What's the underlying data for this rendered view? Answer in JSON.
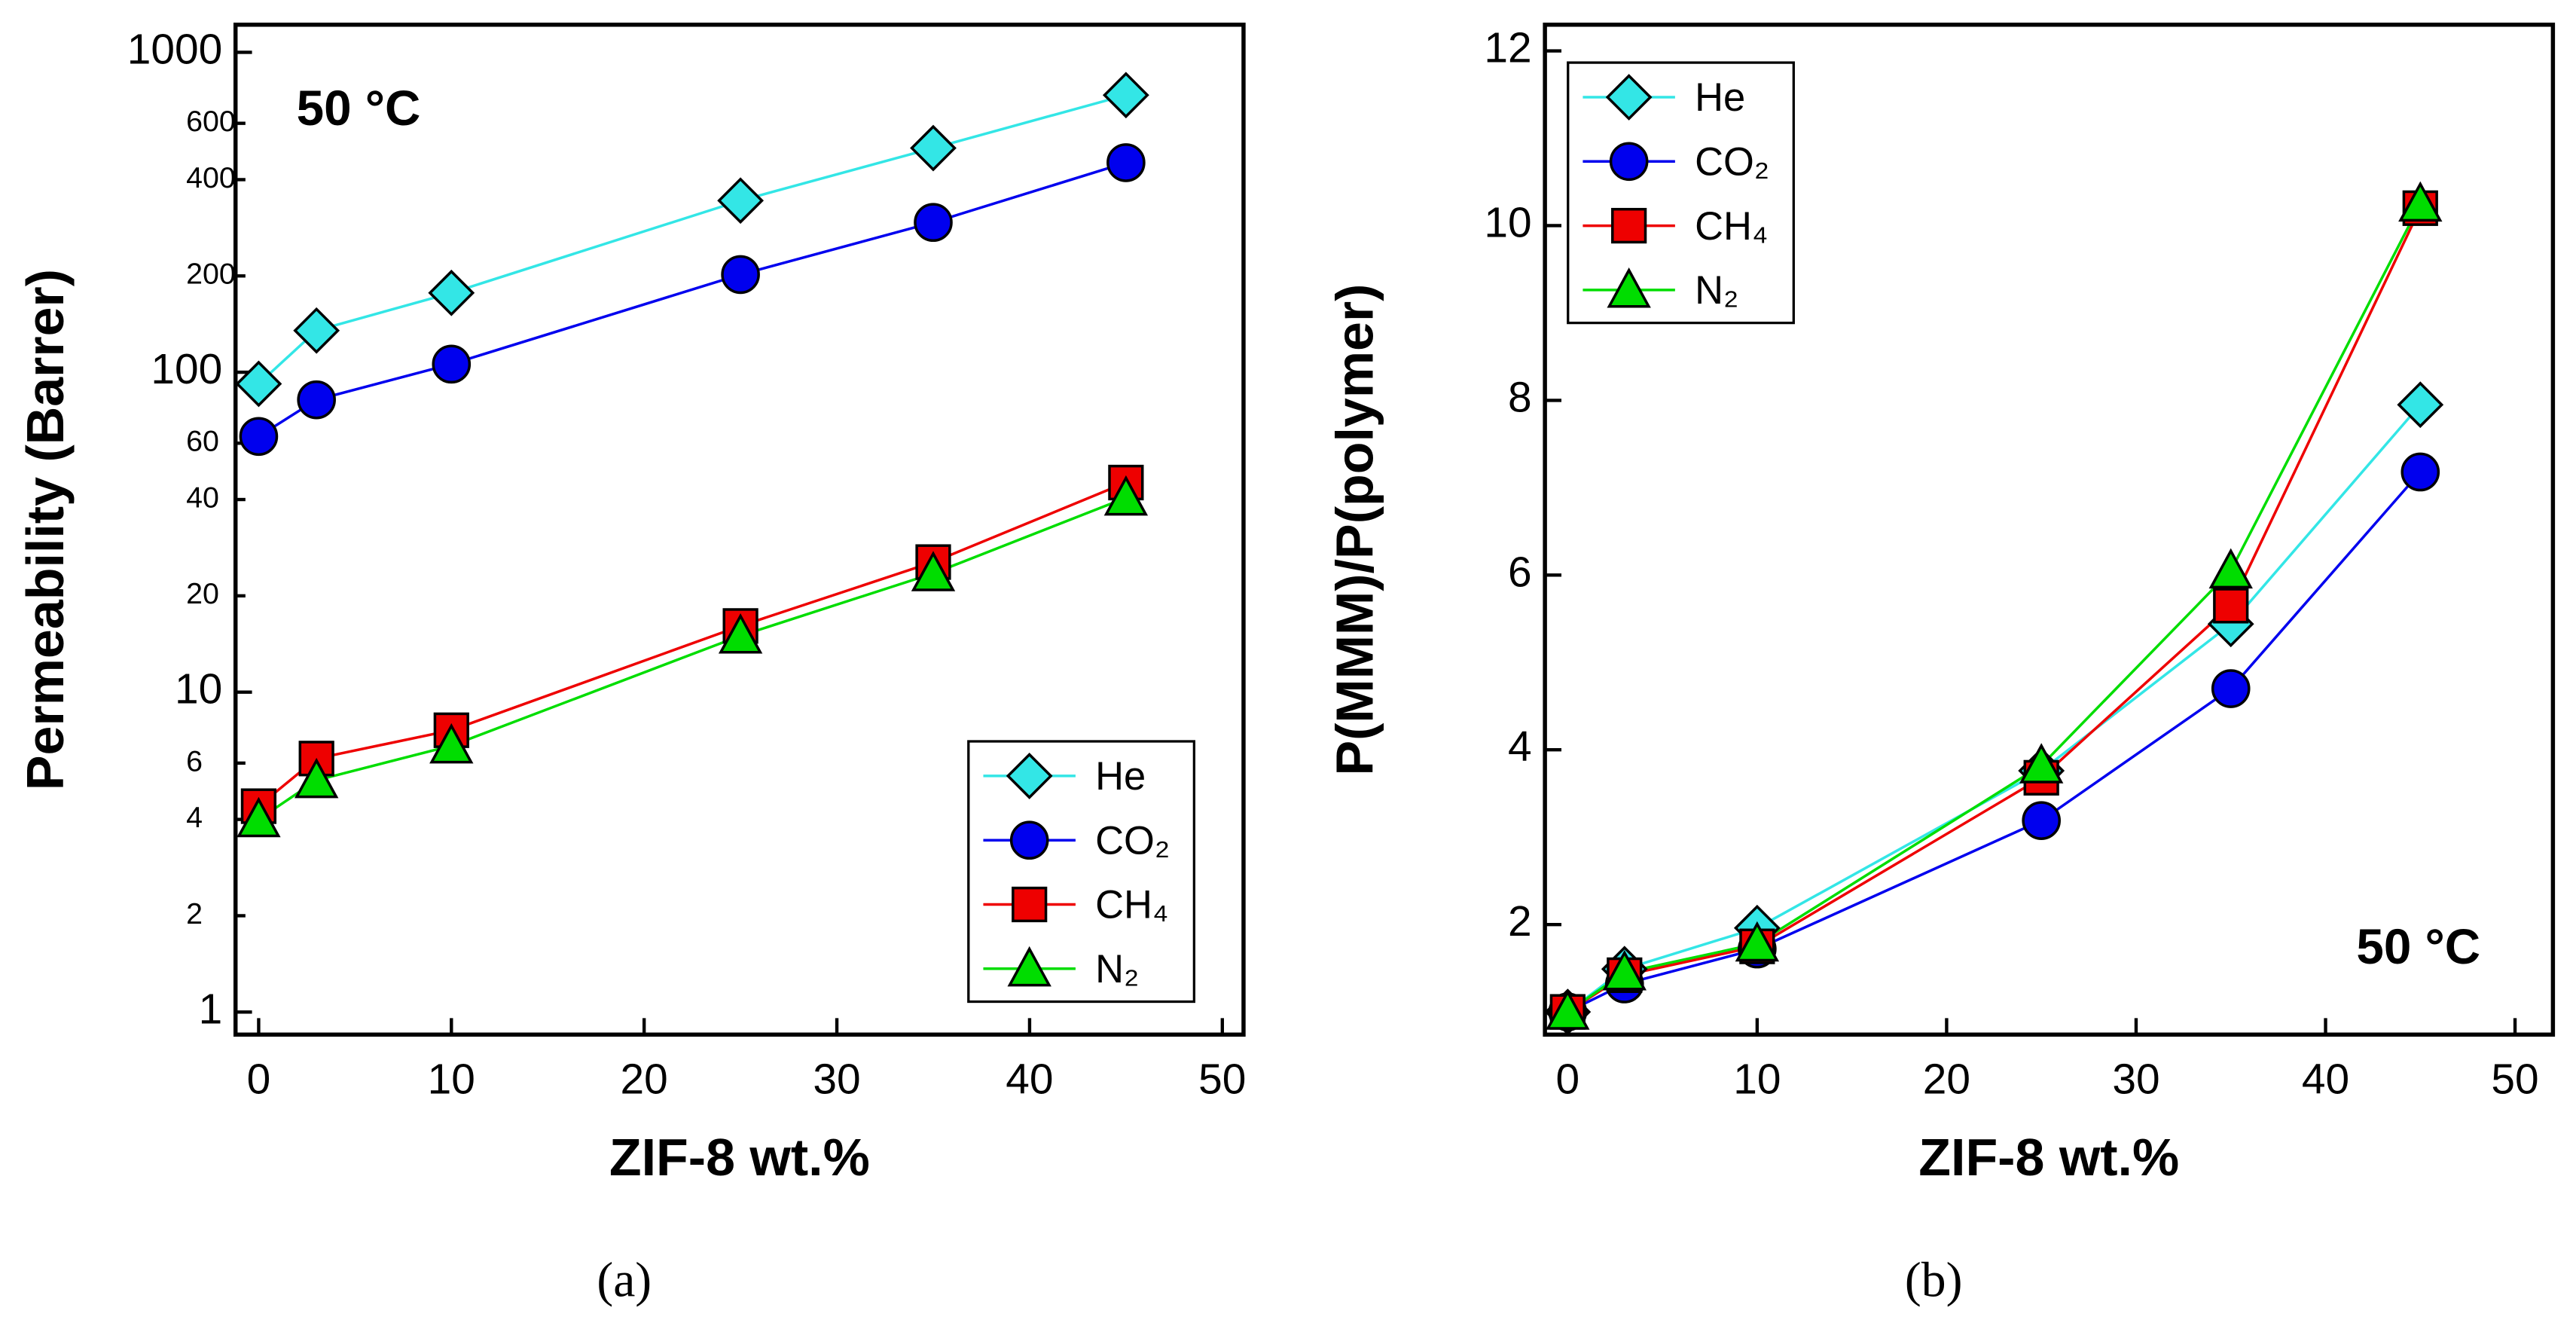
{
  "chart_data": [
    {
      "type": "line",
      "caption": "(a)",
      "annotation": "50 °C",
      "xlabel": "ZIF-8 wt.%",
      "ylabel": "Permeability (Barrer)",
      "log_y": true,
      "legend": "lower right",
      "xlim": [
        -1.2,
        51.1
      ],
      "xticks": [
        0,
        10,
        20,
        30,
        40,
        50
      ],
      "ylim": [
        0.85,
        1220
      ],
      "yticks": [
        1,
        2,
        4,
        6,
        10,
        20,
        40,
        60,
        100,
        200,
        400,
        600,
        1000
      ],
      "x": [
        0,
        3,
        10,
        25,
        35,
        45
      ],
      "series": [
        {
          "name": "He",
          "color": "#33e6e6",
          "marker": "diamond",
          "values": [
            92,
            135,
            177,
            344,
            502,
            735
          ]
        },
        {
          "name": "CO₂",
          "color": "#0000ee",
          "marker": "circle",
          "values": [
            63,
            82,
            106,
            202,
            294,
            452
          ]
        },
        {
          "name": "CH₄",
          "color": "#ee0000",
          "marker": "square",
          "values": [
            4.4,
            6.2,
            7.6,
            16.1,
            25.5,
            45.2
          ]
        },
        {
          "name": "N₂",
          "color": "#00dd00",
          "marker": "triangle",
          "values": [
            4.0,
            5.3,
            6.8,
            15.0,
            23.5,
            40.5
          ]
        }
      ]
    },
    {
      "type": "line",
      "caption": "(b)",
      "annotation": "50 °C",
      "xlabel": "ZIF-8 wt.%",
      "ylabel": "P(MMM)/P(polymer)",
      "log_y": false,
      "legend": "upper left",
      "xlim": [
        -1.2,
        52
      ],
      "xticks": [
        0,
        10,
        20,
        30,
        40,
        50
      ],
      "ylim": [
        0.74,
        12.3
      ],
      "yticks": [
        2,
        4,
        6,
        8,
        10,
        12
      ],
      "x": [
        0,
        3,
        10,
        25,
        35,
        45
      ],
      "series": [
        {
          "name": "He",
          "color": "#33e6e6",
          "marker": "diamond",
          "values": [
            1.0,
            1.49,
            1.96,
            3.76,
            5.44,
            7.95
          ]
        },
        {
          "name": "CO₂",
          "color": "#0000ee",
          "marker": "circle",
          "values": [
            1.0,
            1.32,
            1.72,
            3.19,
            4.7,
            7.18
          ]
        },
        {
          "name": "CH₄",
          "color": "#ee0000",
          "marker": "square",
          "values": [
            1.0,
            1.42,
            1.75,
            3.68,
            5.65,
            10.2
          ]
        },
        {
          "name": "N₂",
          "color": "#00dd00",
          "marker": "triangle",
          "values": [
            1.0,
            1.45,
            1.78,
            3.82,
            6.05,
            10.25
          ]
        }
      ]
    }
  ]
}
